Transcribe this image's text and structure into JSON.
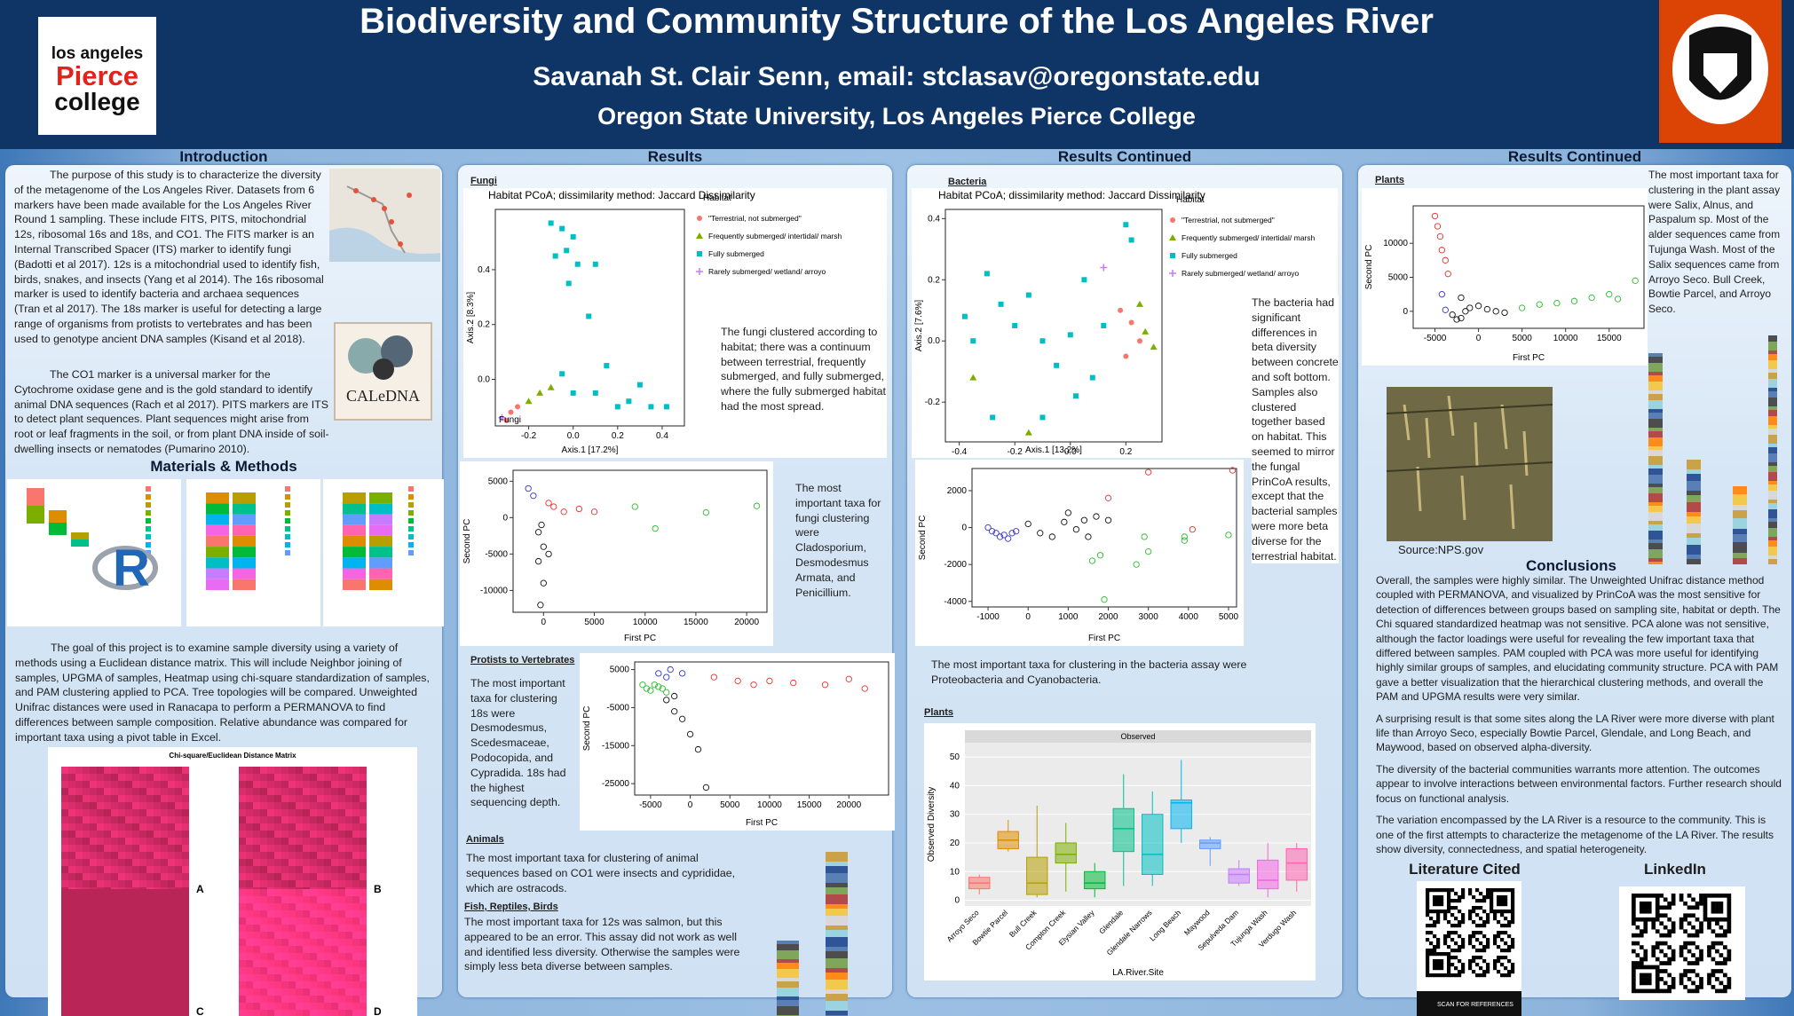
{
  "header": {
    "title": "Biodiversity and Community Structure of the Los Angeles River",
    "author": "Savanah St. Clair Senn, email: stclasav@oregonstate.edu",
    "affiliation": "Oregon State University, Los Angeles Pierce College",
    "logo": [
      "los angeles",
      "Pierce",
      "college"
    ]
  },
  "introduction": {
    "heading": "Introduction",
    "paragraphs": [
      "The purpose of this study is to characterize the diversity of the metagenome of the Los Angeles River. Datasets from 6 markers have been made available for the Los Angeles River Round 1 sampling. These include FITS, PITS, mitochondrial 12s, ribosomal 16s and 18s, and CO1. The FITS marker is an Internal Transcribed Spacer (ITS) marker to identify fungi (Badotti et al 2017).  12s is a mitochondrial used to identify fish, birds, snakes, and insects (Yang et al 2014). The 16s ribosomal marker is used to identify bacteria and archaea sequences (Tran et al 2017).  The 18s marker is useful for detecting a large range of organisms from protists to vertebrates and has been used to genotype ancient DNA samples (Kisand et al 2018).",
      "The CO1 marker is a universal marker for the Cytochrome oxidase gene and is the gold standard to identify animal DNA sequences (Rach et al 2017).  PITS markers are ITS to detect plant sequences. Plant sequences might arise from root or leaf fragments in the soil, or from plant DNA inside of soil-dwelling insects or nematodes (Pumarino 2010)."
    ],
    "caledna": "CALeDNA"
  },
  "materials": {
    "heading": "Materials & Methods",
    "r_logo": "R",
    "paragraph": "The goal of this project is to examine sample diversity using a variety of methods using a Euclidean distance matrix.  This will include Neighbor joining of samples, UPGMA of samples, Heatmap using chi-square standardization of samples, and PAM clustering applied to PCA. Tree topologies will be compared. Unweighted Unifrac distances were used in Ranacapa to perform a PERMANOVA to find differences between sample composition. Relative abundance was compared for important taxa using a pivot table in Excel.",
    "heatmap": {
      "title": "Chi-square/Euclidean Distance Matrix",
      "panels": [
        "A",
        "B",
        "C",
        "D"
      ]
    }
  },
  "results": {
    "heading": "Results",
    "fungi_label": "Fungi",
    "fungi_caption": "The fungi clustered according to habitat; there was a continuum between terrestrial, frequently submerged, and fully submerged, where the fully submerged habitat had the most spread.",
    "fungi_taxa": "The most important taxa for fungi clustering were Cladosporium, Desmodesmus Armata, and Penicillium.",
    "protists_label": "Protists to Vertebrates",
    "protists_text": "The most important taxa for clustering 18s were Desmodesmus, Scedesmaceae, Podocopida, and Cypradida. 18s had the highest sequencing depth.",
    "animals_label": "Animals",
    "animals_text": "The most important taxa for clustering of animal sequences based on CO1 were insects and cyprididae, which are ostracods.",
    "fish_label": "Fish, Reptiles, Birds",
    "fish_text": "The most important taxa for 12s was salmon, but this appeared to be an error. This assay did not work as well and identified less diversity. Otherwise the samples were simply less beta diverse between samples."
  },
  "results_continued": {
    "heading": "Results Continued",
    "bacteria_label": "Bacteria",
    "bacteria_text": "The bacteria had significant differences in beta diversity between concrete and soft bottom.  Samples also clustered together based on habitat.  This seemed to mirror the fungal PrinCoA results, except that the bacterial samples were more beta diverse for the terrestrial habitat.",
    "bacteria_taxa": "The most important taxa for clustering in the bacteria assay were Proteobacteria and Cyanobacteria.",
    "plants_label": "Plants"
  },
  "results_plants": {
    "heading": "Results Continued",
    "plants_label": "Plants",
    "plants_text": "The most important taxa for clustering in the plant assay were Salix, Alnus, and Paspalum sp. Most of the alder sequences came from Tujunga Wash.  Most of the Salix sequences came from Arroyo Seco. Bull Creek, Bowtie Parcel, and Arroyo Seco.",
    "photo_source": "Source:NPS.gov"
  },
  "conclusions": {
    "heading": "Conclusions",
    "paragraphs": [
      "Overall, the samples were highly similar. The Unweighted Unifrac distance method coupled with PERMANOVA, and visualized by PrinCoA was the most sensitive for detection of differences between groups based on sampling site, habitat or depth. The Chi squared standardized heatmap was not sensitive. PCA alone was not sensitive, although the factor loadings were useful for revealing the few important taxa that differed between samples. PAM coupled with PCA was more useful for identifying highly similar groups of samples, and elucidating community structure. PCA with PAM gave a better visualization that the hierarchical clustering methods, and overall the PAM and UPGMA results were very similar.",
      "A surprising result is that some sites along the LA River were more diverse with plant life than Arroyo Seco, especially Bowtie Parcel, Glendale, and Long Beach, and Maywood, based on observed alpha-diversity.",
      "The diversity of the bacterial communities warrants more attention. The outcomes appear to involve interactions between environmental factors. Further research should focus on functional analysis.",
      "The variation encompassed by the LA River is a resource to the community.  This is one of the first attempts to characterize the metagenome of the LA River. The results show diversity, connectedness, and spatial heterogeneity."
    ]
  },
  "links": {
    "literature": "Literature Cited",
    "linkedin": "LinkedIn",
    "scan": "SCAN FOR REFERENCES"
  },
  "charts": {
    "fungi_pcoa": {
      "type": "scatter",
      "title": "Habitat PCoA; dissimilarity method: Jaccard Dissimilarity",
      "panel_label": "Fungi",
      "xlabel": "Axis.1  [17.2%]",
      "ylabel": "Axis.2  [8.3%]",
      "legend_title": "Habitat",
      "xlim": [
        -0.35,
        0.5
      ],
      "ylim": [
        -0.17,
        0.62
      ],
      "xticks": [
        -0.2,
        {
          "value": 0,
          "label": "0.0"
        },
        0.2,
        0.4
      ],
      "yticks": [
        {
          "value": 0,
          "label": "0.0"
        },
        0.2,
        0.4
      ],
      "series": [
        {
          "name": "\"Terrestrial, not submerged\"",
          "color": "#f8766d",
          "shape": "circle",
          "x": [
            -0.3,
            -0.28,
            -0.25
          ],
          "y": [
            -0.15,
            -0.12,
            -0.1
          ]
        },
        {
          "name": "Frequently submerged/ intertidal/ marsh",
          "color": "#7cae00",
          "shape": "triangle",
          "x": [
            -0.2,
            -0.15,
            -0.1
          ],
          "y": [
            -0.08,
            -0.05,
            -0.03
          ]
        },
        {
          "name": "Fully submerged",
          "color": "#00bfc4",
          "shape": "square",
          "x": [
            -0.1,
            -0.05,
            0,
            -0.08,
            -0.03,
            0.02,
            0.1,
            -0.02,
            0.07,
            0.15,
            0.2,
            0.35,
            0.42,
            0.25,
            0.1,
            -0.05,
            0,
            0.3
          ],
          "y": [
            0.57,
            0.55,
            0.52,
            0.45,
            0.47,
            0.42,
            0.42,
            0.35,
            0.23,
            0.05,
            -0.1,
            -0.1,
            -0.1,
            -0.08,
            -0.05,
            0.02,
            -0.05,
            -0.02
          ]
        },
        {
          "name": "Rarely submerged/ wetland/ arroyo",
          "color": "#c77cff",
          "shape": "plus",
          "x": [
            -0.32
          ],
          "y": [
            -0.14
          ]
        }
      ]
    },
    "bacteria_pcoa": {
      "type": "scatter",
      "title": "Habitat PCoA; dissimilarity method: Jaccard Dissimilarity",
      "xlabel": "Axis.1  [13.2%]",
      "ylabel": "Axis.2  [7.6%]",
      "legend_title": "Habitat",
      "xlim": [
        -0.45,
        0.33
      ],
      "ylim": [
        -0.33,
        0.43
      ],
      "xticks": [
        -0.4,
        -0.2,
        {
          "value": 0,
          "label": "0.0"
        },
        0.2
      ],
      "yticks": [
        -0.2,
        {
          "value": 0,
          "label": "0.0"
        },
        0.2,
        0.4
      ],
      "series": [
        {
          "name": "\"Terrestrial, not submerged\"",
          "color": "#f8766d",
          "shape": "circle",
          "x": [
            0.18,
            0.22,
            0.25,
            0.2
          ],
          "y": [
            0.1,
            0.06,
            0,
            -0.05
          ]
        },
        {
          "name": "Frequently submerged/ intertidal/ marsh",
          "color": "#7cae00",
          "shape": "triangle",
          "x": [
            0.25,
            0.27,
            0.3,
            -0.35,
            -0.15
          ],
          "y": [
            0.12,
            0.03,
            -0.02,
            -0.12,
            -0.3
          ]
        },
        {
          "name": "Fully submerged",
          "color": "#00bfc4",
          "shape": "square",
          "x": [
            -0.38,
            -0.35,
            -0.3,
            -0.25,
            -0.2,
            -0.15,
            -0.1,
            -0.05,
            0,
            0.02,
            0.08,
            0.05,
            0.2,
            0.22,
            -0.28,
            -0.1,
            0.12
          ],
          "y": [
            0.08,
            0,
            0.22,
            0.12,
            0.05,
            0.15,
            0,
            -0.08,
            0.02,
            -0.18,
            -0.12,
            0.2,
            0.38,
            0.33,
            -0.25,
            -0.25,
            0.05
          ]
        },
        {
          "name": "Rarely submerged/ wetland/ arroyo",
          "color": "#c77cff",
          "shape": "plus",
          "x": [
            0.12
          ],
          "y": [
            0.24
          ]
        }
      ]
    },
    "fungi_pca": {
      "type": "scatter",
      "xlabel": "First PC",
      "ylabel": "Second PC",
      "xlim": [
        -3000,
        22000
      ],
      "ylim": [
        -13000,
        6500
      ],
      "xticks": [
        0,
        5000,
        10000,
        15000,
        20000
      ],
      "yticks": [
        -10000,
        -5000,
        0,
        5000
      ],
      "series": [
        {
          "color": "#e8302c",
          "shape": "ring",
          "x": [
            500,
            1000,
            2000,
            3500,
            5000
          ],
          "y": [
            2000,
            1500,
            800,
            1200,
            800
          ]
        },
        {
          "color": "#2eb82e",
          "shape": "ring",
          "x": [
            9000,
            11000,
            16000,
            21000
          ],
          "y": [
            1500,
            -1500,
            700,
            1600
          ]
        },
        {
          "color": "#3535d0",
          "shape": "ring",
          "x": [
            -1500,
            -1000
          ],
          "y": [
            4000,
            3000
          ]
        },
        {
          "color": "#111111",
          "shape": "ring",
          "x": [
            -500,
            0,
            -500,
            0,
            -300,
            500,
            -200
          ],
          "y": [
            -2000,
            -4000,
            -6000,
            -9000,
            -12000,
            -5000,
            -1000
          ]
        }
      ]
    },
    "bacteria_pca": {
      "type": "scatter",
      "xlabel": "First PC",
      "ylabel": "Second PC",
      "xlim": [
        -1400,
        5200
      ],
      "ylim": [
        -4300,
        3200
      ],
      "xticks": [
        -1000,
        0,
        1000,
        2000,
        3000,
        4000,
        5000
      ],
      "yticks": [
        -4000,
        -2000,
        0,
        2000
      ],
      "series": [
        {
          "color": "#3535d0",
          "shape": "ring",
          "x": [
            -1000,
            -900,
            -800,
            -700,
            -600,
            -500,
            -400,
            -300
          ],
          "y": [
            0,
            -200,
            -300,
            -500,
            -400,
            -600,
            -300,
            -200
          ]
        },
        {
          "color": "#111111",
          "shape": "ring",
          "x": [
            0,
            300,
            600,
            900,
            1000,
            1200,
            1400,
            1700,
            2000,
            1500
          ],
          "y": [
            200,
            -300,
            -500,
            300,
            800,
            -100,
            400,
            600,
            400,
            -500
          ]
        },
        {
          "color": "#e8302c",
          "shape": "ring",
          "x": [
            2000,
            3000,
            4100,
            5100
          ],
          "y": [
            1600,
            3000,
            -100,
            3100
          ]
        },
        {
          "color": "#2eb82e",
          "shape": "ring",
          "x": [
            1800,
            1600,
            2700,
            3000,
            2900,
            3900,
            3900,
            5000,
            1900
          ],
          "y": [
            -1500,
            -1800,
            -2000,
            -1300,
            -500,
            -700,
            -500,
            -400,
            -3900
          ]
        }
      ]
    },
    "protists_pca": {
      "type": "scatter",
      "xlabel": "First PC",
      "ylabel": "Second PC",
      "xlim": [
        -7000,
        25000
      ],
      "ylim": [
        -28000,
        7000
      ],
      "xticks": [
        -5000,
        0,
        5000,
        10000,
        15000,
        20000
      ],
      "yticks": [
        -25000,
        -15000,
        -5000,
        5000
      ],
      "series": [
        {
          "color": "#3535d0",
          "shape": "ring",
          "x": [
            -4000,
            -3000,
            -2500,
            -1000
          ],
          "y": [
            4000,
            3000,
            5000,
            4000
          ]
        },
        {
          "color": "#2eb82e",
          "shape": "ring",
          "x": [
            -6000,
            -5500,
            -5000,
            -4500,
            -4000,
            -3500,
            -3000
          ],
          "y": [
            1000,
            0,
            -500,
            1000,
            500,
            0,
            -1000
          ]
        },
        {
          "color": "#e8302c",
          "shape": "ring",
          "x": [
            3000,
            6000,
            8000,
            10000,
            13000,
            17000,
            20000,
            22000
          ],
          "y": [
            3000,
            2000,
            1000,
            2000,
            1500,
            1000,
            2500,
            0
          ]
        },
        {
          "color": "#111111",
          "shape": "ring",
          "x": [
            -3000,
            -2000,
            -1000,
            0,
            1000,
            2000,
            -2000
          ],
          "y": [
            -3000,
            -6000,
            -8000,
            -12000,
            -16000,
            -26000,
            -2000
          ]
        }
      ]
    },
    "plants_pca": {
      "type": "scatter",
      "xlabel": "First PC",
      "ylabel": "Second PC",
      "xlim": [
        -7500,
        19000
      ],
      "ylim": [
        -2500,
        15500
      ],
      "xticks": [
        -5000,
        0,
        5000,
        10000,
        15000
      ],
      "yticks": [
        0,
        5000,
        10000
      ],
      "series": [
        {
          "color": "#e8302c",
          "shape": "ring",
          "x": [
            -5000,
            -4700,
            -4400,
            -4200,
            -3800,
            -3500
          ],
          "y": [
            14000,
            12500,
            11000,
            9000,
            7500,
            5500
          ]
        },
        {
          "color": "#3535d0",
          "shape": "ring",
          "x": [
            -4200,
            -3800
          ],
          "y": [
            2500,
            200
          ]
        },
        {
          "color": "#111111",
          "shape": "ring",
          "x": [
            -3000,
            -2500,
            -2000,
            -1500,
            -1000,
            0,
            1000,
            2000,
            3000,
            -2000
          ],
          "y": [
            -500,
            -1200,
            -1000,
            0,
            500,
            800,
            300,
            0,
            -200,
            2000
          ]
        },
        {
          "color": "#2eb82e",
          "shape": "ring",
          "x": [
            5000,
            7000,
            9000,
            11000,
            13000,
            15000,
            16000,
            18000
          ],
          "y": [
            500,
            1000,
            1200,
            1500,
            2000,
            2500,
            1800,
            4500
          ]
        }
      ]
    },
    "plants_diversity": {
      "type": "box",
      "strip": "Observed",
      "xlabel": "LA.River.Site",
      "ylabel": "Observed Diversity",
      "ylim": [
        -2,
        55
      ],
      "yticks": [
        0,
        10,
        20,
        30,
        40,
        50
      ],
      "grid": true,
      "categories": [
        "Arroyo Seco",
        "Bowtie Parcel",
        "Bull Creek",
        "Compton Creek",
        "Elysian Valley",
        "Glendale",
        "Glendale Narrows",
        "Long Beach",
        "Maywood",
        "Sepulveda Dam",
        "Tujunga Wash",
        "Verdugo Wash"
      ],
      "colors": [
        "#f8766d",
        "#de8c00",
        "#b79f00",
        "#7cae00",
        "#00ba38",
        "#00c08b",
        "#00bfc4",
        "#00b4f0",
        "#619cff",
        "#c77cff",
        "#f564e3",
        "#ff64b0"
      ],
      "min": [
        2,
        17,
        1,
        3,
        1,
        5,
        5,
        20,
        12,
        5,
        1,
        3
      ],
      "q1": [
        4,
        18,
        2,
        13,
        4,
        17,
        9,
        25,
        18,
        6,
        4,
        7
      ],
      "median": [
        6,
        21,
        6,
        16,
        6,
        25,
        16,
        34,
        20,
        9,
        7,
        13
      ],
      "q3": [
        8,
        24,
        15,
        20,
        10,
        32,
        30,
        35,
        21,
        11,
        14,
        18
      ],
      "max": [
        9,
        28,
        33,
        27,
        13,
        44,
        38,
        49,
        22,
        14,
        20,
        20
      ]
    }
  }
}
